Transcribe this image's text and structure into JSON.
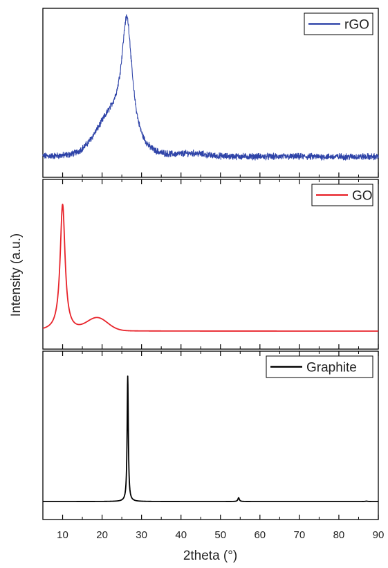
{
  "chart_data": {
    "type": "line",
    "layout": "three vertically stacked panels sharing x-axis",
    "xlabel": "2theta (°)",
    "ylabel": "Intensity (a.u.)",
    "xlim": [
      5,
      90
    ],
    "x_ticks": [
      10,
      20,
      30,
      40,
      50,
      60,
      70,
      80,
      90
    ],
    "x_tick_labels": [
      "10",
      "20",
      "30",
      "40",
      "50",
      "60",
      "70",
      "80",
      "90"
    ],
    "y_tick_labels_shown": false,
    "legend_placement": "top-right of each panel",
    "panels": [
      {
        "name": "rGO",
        "color": "#2f44a8",
        "noisy": true,
        "baseline": 0.02,
        "peaks": [
          {
            "center": 26.3,
            "height": 0.93,
            "note": "sharp-ish maximum"
          },
          {
            "center": 22.5,
            "height": 0.28,
            "note": "broad shoulder"
          },
          {
            "center": 43.0,
            "height": 0.02
          }
        ]
      },
      {
        "name": "GO",
        "color": "#e8232a",
        "noisy": false,
        "baseline": 0.0,
        "peaks": [
          {
            "center": 10.0,
            "height": 1.0
          },
          {
            "center": 18.8,
            "height": 0.1
          }
        ]
      },
      {
        "name": "Graphite",
        "color": "#000000",
        "noisy": false,
        "baseline": 0.0,
        "peaks": [
          {
            "center": 26.5,
            "height": 1.0
          },
          {
            "center": 54.6,
            "height": 0.03
          },
          {
            "center": 87.0,
            "height": 0.003
          }
        ]
      }
    ]
  }
}
